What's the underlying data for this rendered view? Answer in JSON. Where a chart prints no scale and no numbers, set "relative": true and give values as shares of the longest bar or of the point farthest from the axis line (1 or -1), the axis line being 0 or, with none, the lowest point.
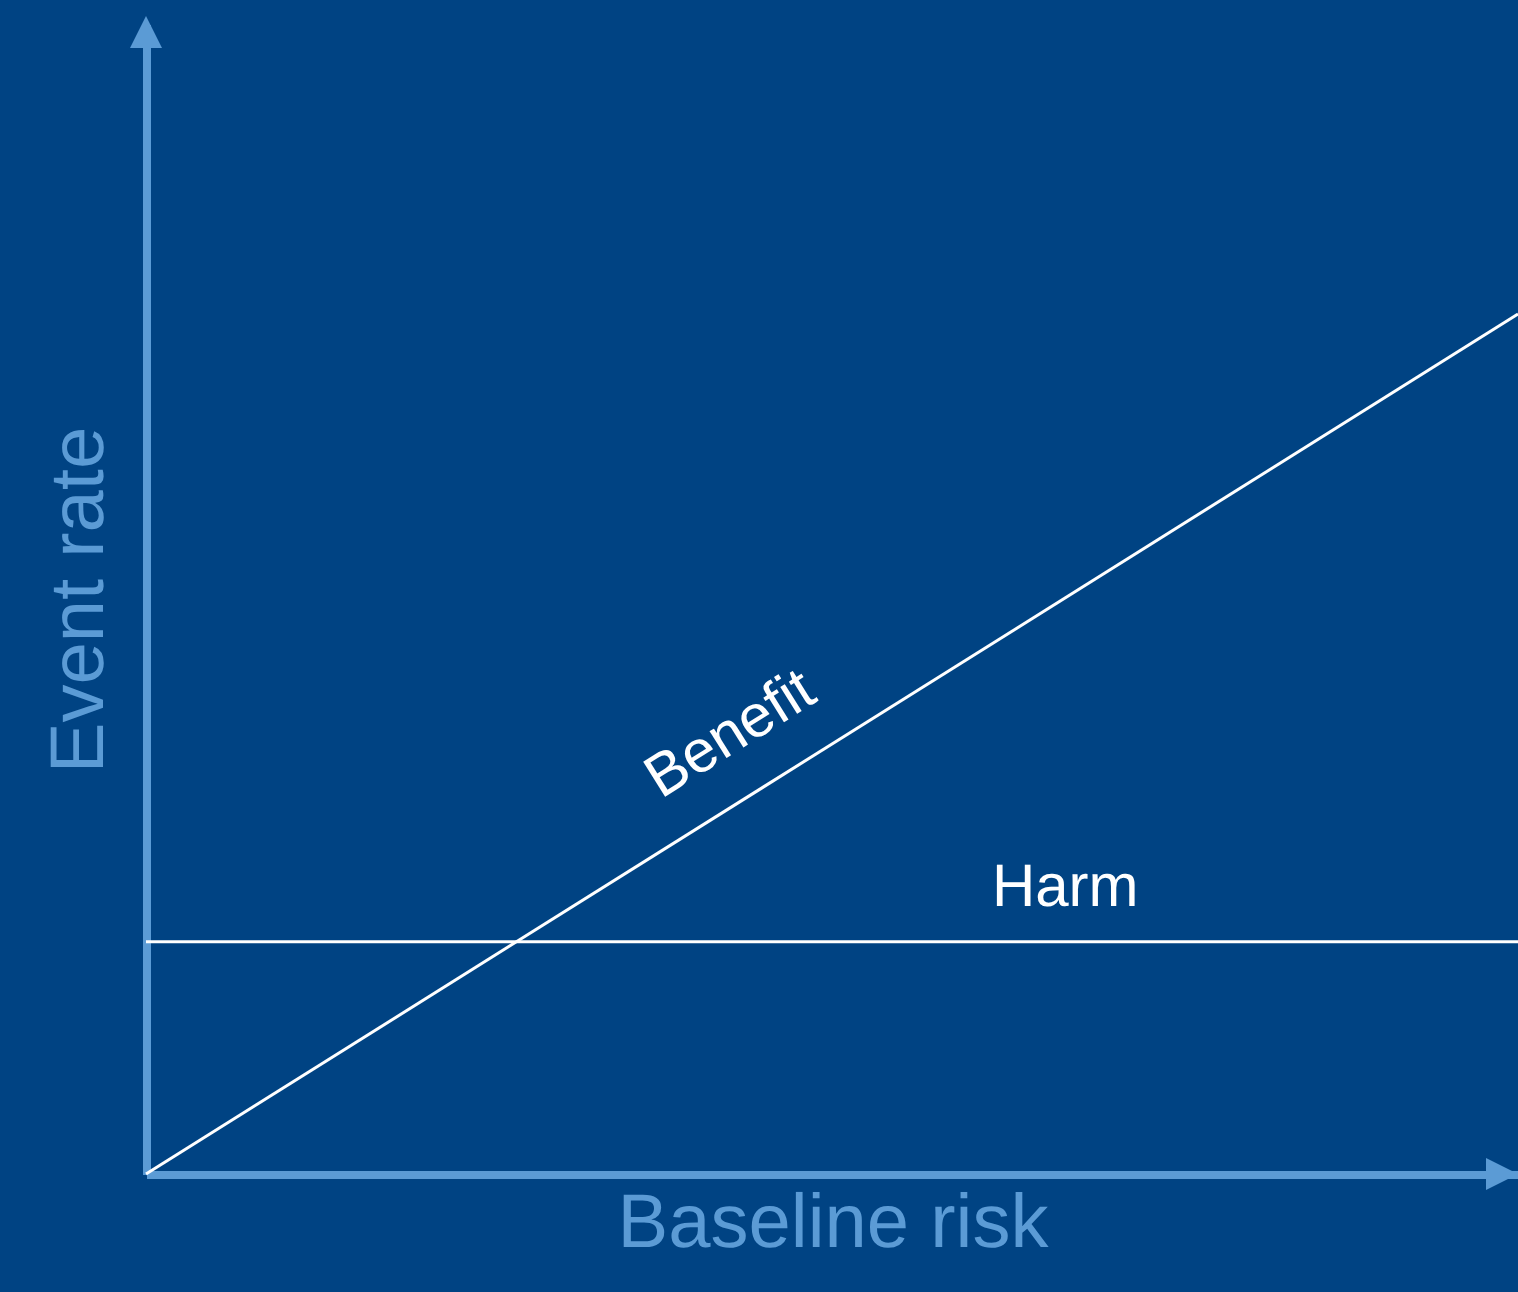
{
  "chart_data": {
    "type": "line",
    "relative": true,
    "xlabel": "Baseline risk",
    "ylabel": "Event rate",
    "categories": [
      null,
      null
    ],
    "grid": false,
    "tick_labels": false,
    "marker": "none",
    "line_style": "solid",
    "series": [
      {
        "name": "Benefit",
        "color": "#ffffff",
        "values": [
          0,
          1
        ]
      },
      {
        "name": "Harm",
        "color": "#ffffff",
        "values": [
          0.27,
          0.27
        ]
      }
    ]
  }
}
